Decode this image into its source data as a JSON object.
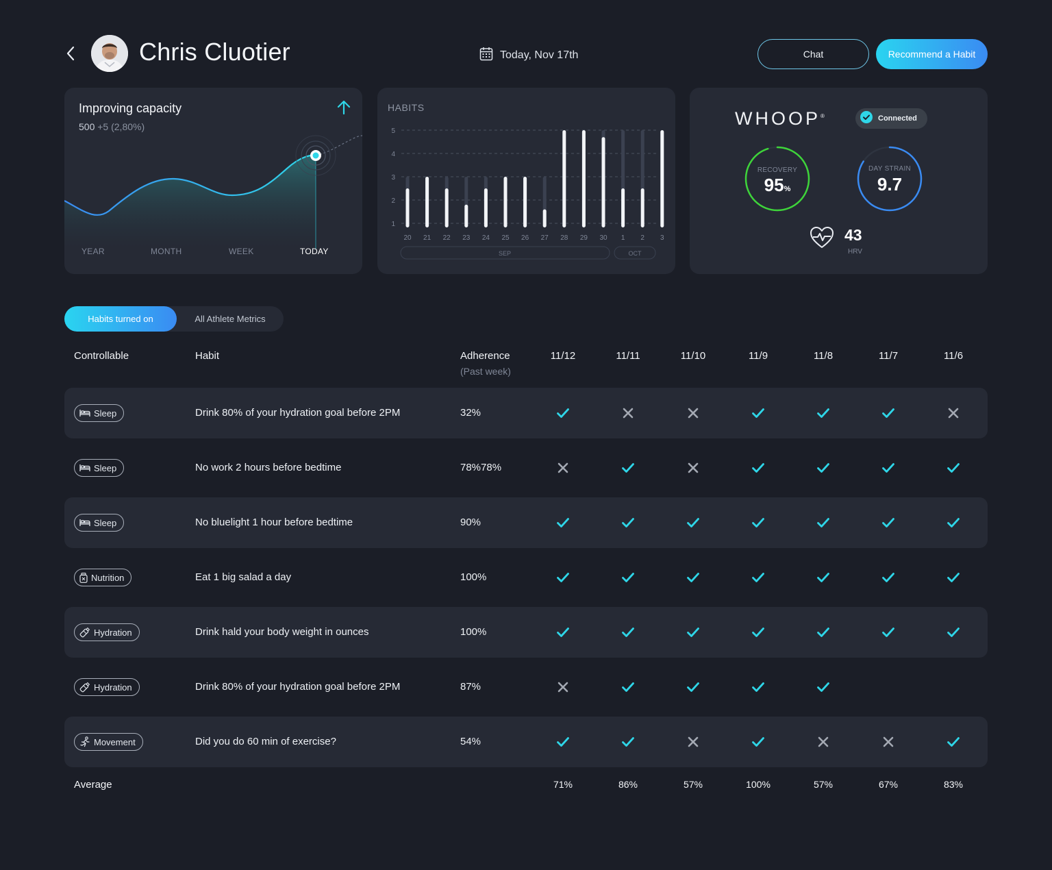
{
  "header": {
    "athlete_name": "Chris Cluotier",
    "date": "Today, Nov 17th",
    "chat_label": "Chat",
    "recommend_label": "Recommend a Habit"
  },
  "capacity_card": {
    "title": "Improving capacity",
    "value": "500",
    "delta": "+5 (2,80%)",
    "tabs": [
      "YEAR",
      "MONTH",
      "WEEK",
      "TODAY"
    ],
    "active_tab": "TODAY",
    "accent": "#2fd6e8"
  },
  "habits_card": {
    "title": "HABITS",
    "month_labels": [
      "SEP",
      "OCT"
    ],
    "chart_data": {
      "type": "bar",
      "categories": [
        "20",
        "21",
        "22",
        "23",
        "24",
        "25",
        "26",
        "27",
        "28",
        "29",
        "30",
        "1",
        "2",
        "3"
      ],
      "series": [
        {
          "values": [
            2.5,
            3,
            2.5,
            1.8,
            2.5,
            3,
            3,
            1.6,
            5,
            5,
            4.7,
            2.5,
            2.5,
            5
          ]
        },
        {
          "values": [
            3,
            3,
            3,
            3,
            3,
            3,
            3,
            3,
            5,
            5,
            5,
            5,
            5,
            5
          ]
        }
      ],
      "ylim": [
        1,
        5
      ],
      "yticks": [
        "1",
        "2",
        "3",
        "4",
        "5"
      ],
      "grid": true
    }
  },
  "whoop_card": {
    "brand": "WHOOP",
    "connected_label": "Connected",
    "recovery_label": "RECOVERY",
    "recovery_value": "95",
    "recovery_unit": "%",
    "recovery_color": "#3ed43a",
    "strain_label": "DAY STRAIN",
    "strain_value": "9.7",
    "strain_color": "#3a8bf2",
    "hrv_value": "43",
    "hrv_label": "HRV"
  },
  "toggle": {
    "active": "Habits turned on",
    "inactive": "All Athlete Metrics"
  },
  "table": {
    "headers": {
      "controllable": "Controllable",
      "habit": "Habit",
      "adherence": "Adherence",
      "adherence_sub": "(Past week)"
    },
    "dates": [
      "11/12",
      "11/11",
      "11/10",
      "11/9",
      "11/8",
      "11/7",
      "11/6"
    ],
    "rows": [
      {
        "category": "Sleep",
        "icon": "bed-icon",
        "habit": "Drink 80% of your hydration goal before 2PM",
        "adherence": "32%",
        "marks": [
          "check",
          "x",
          "x",
          "check",
          "check",
          "check",
          "x"
        ]
      },
      {
        "category": "Sleep",
        "icon": "bed-icon",
        "habit": "No work 2 hours before bedtime",
        "adherence": "78%78%",
        "marks": [
          "x",
          "check",
          "x",
          "check",
          "check",
          "check",
          "check"
        ]
      },
      {
        "category": "Sleep",
        "icon": "bed-icon",
        "habit": "No bluelight 1 hour before bedtime",
        "adherence": "90%",
        "marks": [
          "check",
          "check",
          "check",
          "check",
          "check",
          "check",
          "check"
        ]
      },
      {
        "category": "Nutrition",
        "icon": "jar-icon",
        "habit": "Eat 1 big salad a day",
        "adherence": "100%",
        "marks": [
          "check",
          "check",
          "check",
          "check",
          "check",
          "check",
          "check"
        ]
      },
      {
        "category": "Hydration",
        "icon": "bottle-icon",
        "habit": "Drink hald your body weight in ounces",
        "adherence": "100%",
        "marks": [
          "check",
          "check",
          "check",
          "check",
          "check",
          "check",
          "check"
        ]
      },
      {
        "category": "Hydration",
        "icon": "bottle-icon",
        "habit": "Drink 80% of your hydration goal before 2PM",
        "adherence": "87%",
        "marks": [
          "x",
          "check",
          "check",
          "check",
          "check",
          "",
          ""
        ]
      },
      {
        "category": "Movement",
        "icon": "runner-icon",
        "habit": "Did you do 60 min of exercise?",
        "adherence": "54%",
        "marks": [
          "check",
          "check",
          "x",
          "check",
          "x",
          "x",
          "check"
        ]
      }
    ],
    "average_label": "Average",
    "averages": [
      "71%",
      "86%",
      "57%",
      "100%",
      "57%",
      "67%",
      "83%"
    ],
    "check_color": "#2fd6e8",
    "x_color": "#a4a9b3"
  }
}
